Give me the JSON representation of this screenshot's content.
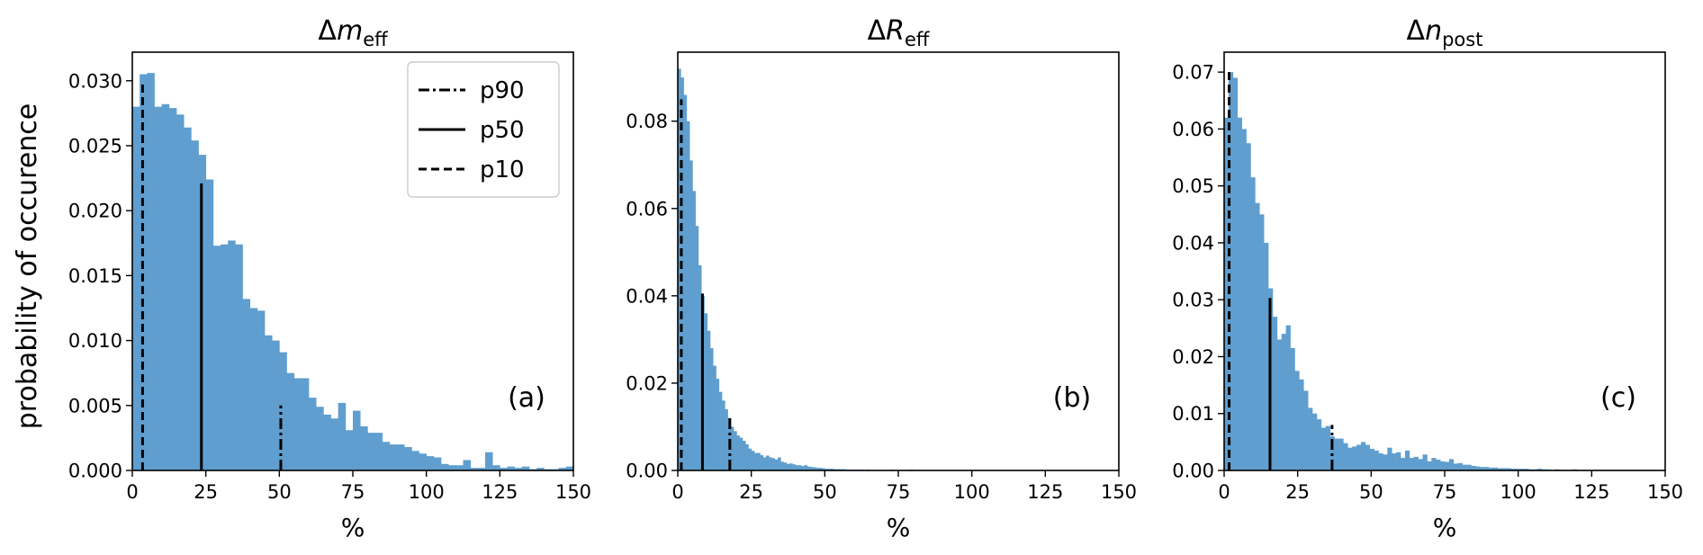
{
  "figure": {
    "ylabel": "probability of occurence",
    "bar_color": "#5f9ecf",
    "line_color": "#000000"
  },
  "legend": {
    "items": [
      {
        "label": "p90",
        "style": "dashdot"
      },
      {
        "label": "p50",
        "style": "solid"
      },
      {
        "label": "p10",
        "style": "dashed"
      }
    ]
  },
  "chart_data": [
    {
      "type": "bar",
      "panel": "a",
      "title_main": "Δ",
      "title_var": "m",
      "title_sub": "eff",
      "panel_label": "(a)",
      "xlabel": "%",
      "xlim": [
        0,
        150
      ],
      "ylim": [
        0,
        0.0322
      ],
      "xticks": [
        0,
        25,
        50,
        75,
        100,
        125,
        150
      ],
      "yticks": [
        0.0,
        0.005,
        0.01,
        0.015,
        0.02,
        0.025,
        0.03
      ],
      "ytick_labels": [
        "0.000",
        "0.005",
        "0.010",
        "0.015",
        "0.020",
        "0.025",
        "0.030"
      ],
      "bin_width": 2.5,
      "values": [
        0.028,
        0.0305,
        0.0306,
        0.028,
        0.0282,
        0.0279,
        0.0274,
        0.0264,
        0.0254,
        0.0243,
        0.0224,
        0.0173,
        0.0174,
        0.0177,
        0.0174,
        0.0132,
        0.0125,
        0.0123,
        0.0104,
        0.01,
        0.0091,
        0.0075,
        0.0071,
        0.0071,
        0.0056,
        0.0049,
        0.0043,
        0.004,
        0.0052,
        0.0031,
        0.0046,
        0.0034,
        0.0029,
        0.0029,
        0.0022,
        0.002,
        0.002,
        0.0018,
        0.0015,
        0.0013,
        0.0011,
        0.001,
        0.0005,
        0.0004,
        0.0004,
        0.0008,
        0.0002,
        0.0002,
        0.0014,
        0.0004,
        0.0002,
        0.0003,
        0.0002,
        0.0003,
        0.0001,
        0.0002,
        0.0001,
        0.0001,
        0.0002,
        0.0003
      ],
      "percentiles": [
        {
          "name": "p10",
          "x": 3.5,
          "y": 0.03,
          "style": "dashed"
        },
        {
          "name": "p50",
          "x": 23.5,
          "y": 0.0221,
          "style": "solid"
        },
        {
          "name": "p90",
          "x": 50.5,
          "y": 0.005,
          "style": "dashdot"
        }
      ]
    },
    {
      "type": "bar",
      "panel": "b",
      "title_main": "Δ",
      "title_var": "R",
      "title_sub": "eff",
      "panel_label": "(b)",
      "xlabel": "%",
      "xlim": [
        0,
        150
      ],
      "ylim": [
        0,
        0.0958
      ],
      "xticks": [
        0,
        25,
        50,
        75,
        100,
        125,
        150
      ],
      "yticks": [
        0.0,
        0.02,
        0.04,
        0.06,
        0.08
      ],
      "ytick_labels": [
        "0.00",
        "0.02",
        "0.04",
        "0.06",
        "0.08"
      ],
      "bin_width": 1.0,
      "values": [
        0.092,
        0.09,
        0.086,
        0.08,
        0.071,
        0.064,
        0.056,
        0.047,
        0.04,
        0.036,
        0.032,
        0.028,
        0.024,
        0.021,
        0.018,
        0.016,
        0.014,
        0.012,
        0.01,
        0.009,
        0.008,
        0.0075,
        0.0068,
        0.006,
        0.005,
        0.0045,
        0.004,
        0.004,
        0.0035,
        0.003,
        0.0034,
        0.003,
        0.0028,
        0.0025,
        0.003,
        0.002,
        0.0018,
        0.0015,
        0.0016,
        0.0014,
        0.0012,
        0.0012,
        0.001,
        0.0012,
        0.0009,
        0.0008,
        0.0007,
        0.0006,
        0.0006,
        0.0005,
        0.0004,
        0.0004,
        0.0004,
        0.0003,
        0.0003,
        0.0003,
        0.0003,
        0.0002,
        0.0002,
        0.0002,
        0.0002,
        0.0002,
        0.0002,
        0.0001,
        0.0002,
        0.0001,
        0.0001,
        0.0001,
        0.0001,
        0.0001,
        0.0001,
        0.0001,
        0.0002,
        0.0001,
        0.0001,
        0.0001,
        0.0001,
        0.0001,
        0.0001,
        0.0002
      ],
      "percentiles": [
        {
          "name": "p10",
          "x": 1.2,
          "y": 0.085,
          "style": "dashed"
        },
        {
          "name": "p50",
          "x": 8.4,
          "y": 0.0405,
          "style": "solid"
        },
        {
          "name": "p90",
          "x": 17.7,
          "y": 0.012,
          "style": "dashdot"
        }
      ]
    },
    {
      "type": "bar",
      "panel": "c",
      "title_main": "Δ",
      "title_var": "n",
      "title_sub": "post",
      "panel_label": "(c)",
      "xlabel": "%",
      "xlim": [
        0,
        150
      ],
      "ylim": [
        0,
        0.0735
      ],
      "xticks": [
        0,
        25,
        50,
        75,
        100,
        125,
        150
      ],
      "yticks": [
        0.0,
        0.01,
        0.02,
        0.03,
        0.04,
        0.05,
        0.06,
        0.07
      ],
      "ytick_labels": [
        "0.00",
        "0.01",
        "0.02",
        "0.03",
        "0.04",
        "0.05",
        "0.06",
        "0.07"
      ],
      "bin_width": 1.5,
      "values": [
        0.062,
        0.07,
        0.069,
        0.062,
        0.06,
        0.0575,
        0.0515,
        0.047,
        0.045,
        0.04,
        0.032,
        0.027,
        0.023,
        0.024,
        0.0255,
        0.0215,
        0.0175,
        0.016,
        0.014,
        0.011,
        0.01,
        0.009,
        0.0075,
        0.0078,
        0.006,
        0.0056,
        0.0056,
        0.0048,
        0.004,
        0.0042,
        0.0045,
        0.005,
        0.0045,
        0.0038,
        0.0035,
        0.003,
        0.0028,
        0.004,
        0.003,
        0.0032,
        0.0022,
        0.0035,
        0.0022,
        0.0024,
        0.002,
        0.0028,
        0.0016,
        0.0022,
        0.0019,
        0.0016,
        0.0015,
        0.002,
        0.0012,
        0.0013,
        0.001,
        0.001,
        0.0008,
        0.0007,
        0.0006,
        0.0006,
        0.0005,
        0.0005,
        0.0004,
        0.0004,
        0.0004,
        0.0003,
        0.0003,
        0.0003,
        0.0003,
        0.0002,
        0.0002,
        0.0003,
        0.0002,
        0.0002,
        0.0001,
        0.0002,
        0.0001,
        0.0001,
        0.0001,
        0.0002,
        0.0001,
        0.0001,
        0.0001,
        0.0001,
        0.0001,
        0.0001,
        0.0001,
        0.0001,
        0.0001,
        0.0001,
        0.0001,
        0.0001,
        0.0001,
        0.0001,
        0.0001,
        0.0001,
        0.0001,
        0.0001,
        0.0001,
        0.0001
      ],
      "percentiles": [
        {
          "name": "p10",
          "x": 1.7,
          "y": 0.07,
          "style": "dashed"
        },
        {
          "name": "p50",
          "x": 15.6,
          "y": 0.0303,
          "style": "solid"
        },
        {
          "name": "p90",
          "x": 36.7,
          "y": 0.008,
          "style": "dashdot"
        }
      ]
    }
  ]
}
